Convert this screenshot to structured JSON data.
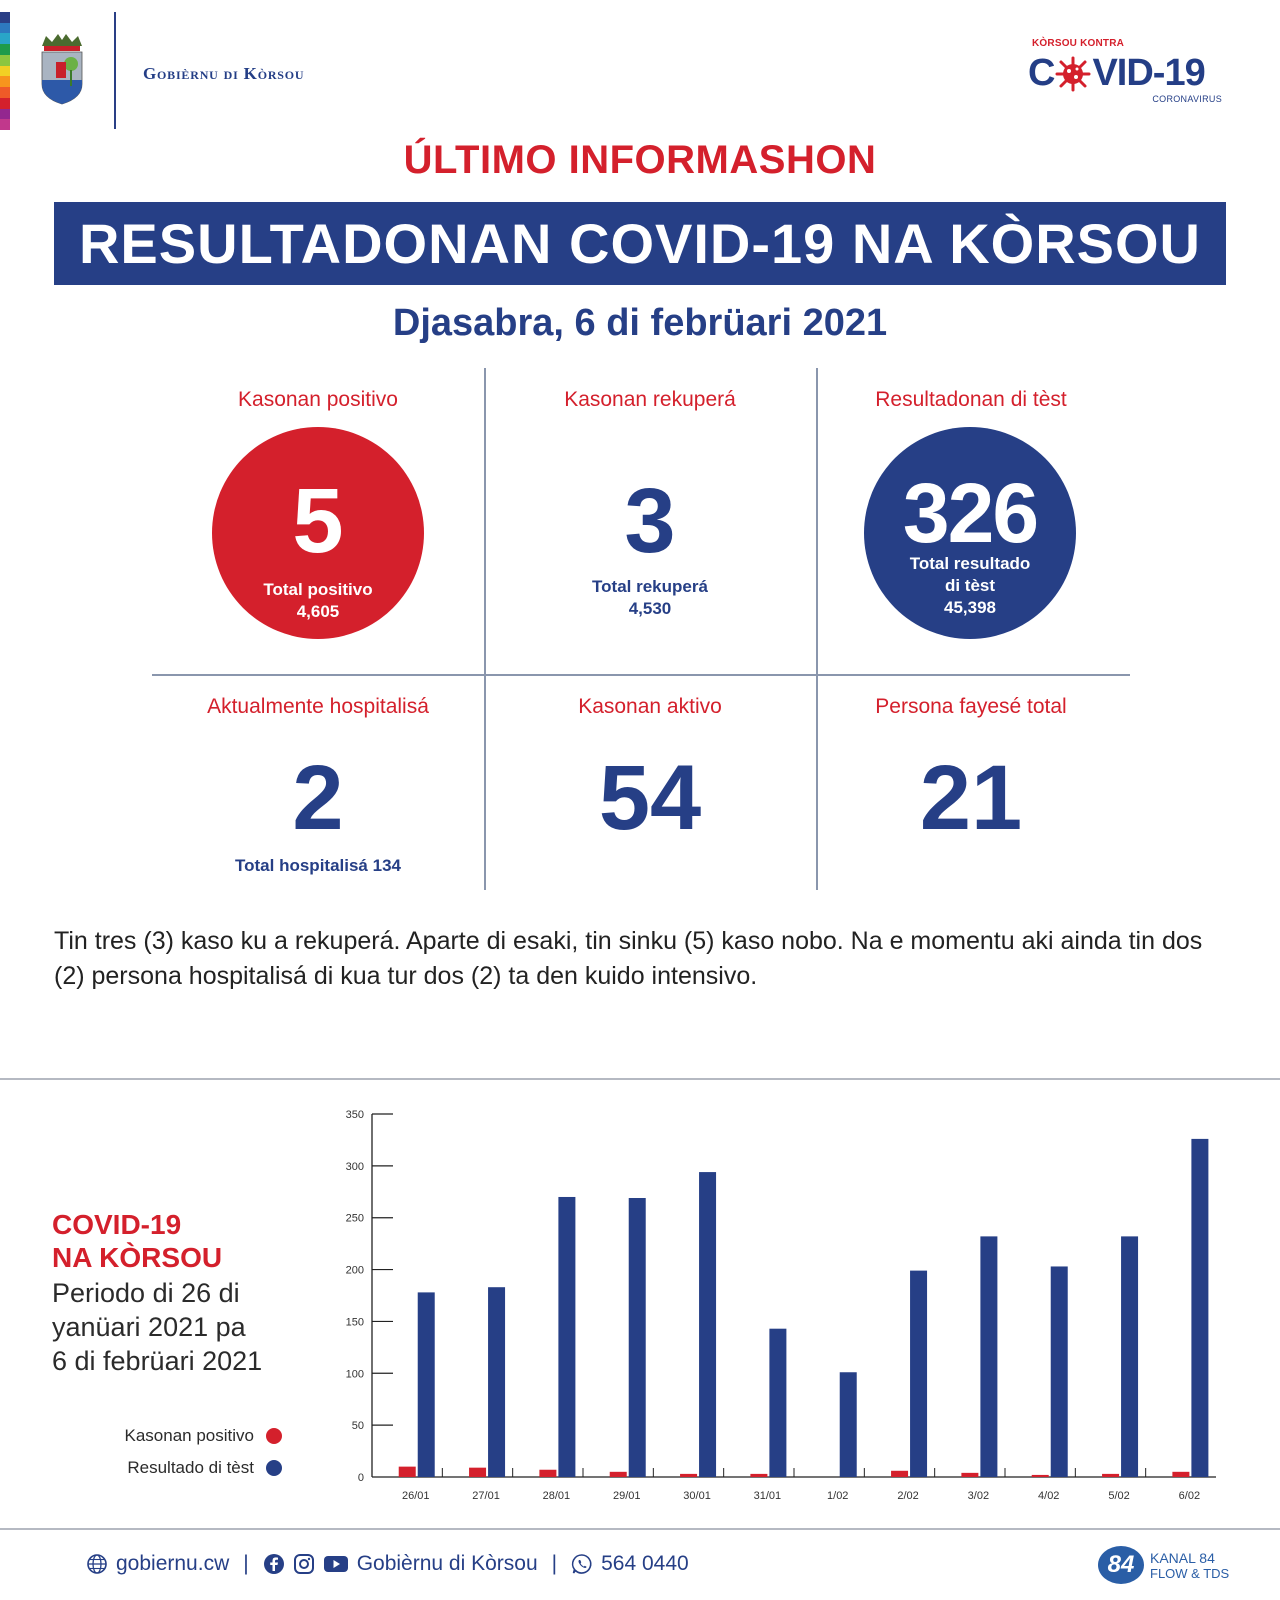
{
  "header": {
    "strip_colors": [
      "#2a3f86",
      "#2d79bf",
      "#29a5c8",
      "#1e9b4b",
      "#8dc63f",
      "#f2d024",
      "#f7941d",
      "#ef5a28",
      "#d4202c",
      "#93278f",
      "#c1388c"
    ],
    "gov_name": "Gobièrnu di Kòrsou",
    "logo_kontra": "KÒRSOU KONTRA",
    "logo_c": "C",
    "logo_vid": "VID-19",
    "logo_coronavirus": "CORONAVIRUS"
  },
  "title": {
    "kicker": "ÚLTIMO INFORMASHON",
    "banner": "RESULTADONAN COVID-19 NA KÒRSOU",
    "date": "Djasabra, 6 di febrüari 2021"
  },
  "stats": {
    "positive": {
      "label": "Kasonan positivo",
      "value": "5",
      "total_label": "Total positivo",
      "total_value": "4,605"
    },
    "recovered": {
      "label": "Kasonan rekuperá",
      "value": "3",
      "total_label": "Total rekuperá",
      "total_value": "4,530"
    },
    "tests": {
      "label": "Resultadonan di tèst",
      "value": "326",
      "total_label_1": "Total resultado",
      "total_label_2": "di tèst",
      "total_value": "45,398"
    },
    "hospitalized": {
      "label": "Aktualmente hospitalisá",
      "value": "2",
      "total": "Total hospitalisá 134"
    },
    "active": {
      "label": "Kasonan aktivo",
      "value": "54"
    },
    "deceased": {
      "label": "Persona fayesé total",
      "value": "21"
    }
  },
  "paragraph": "Tin tres (3) kaso ku a rekuperá. Aparte di esaki, tin sinku (5) kaso nobo. Na e momentu aki ainda tin dos (2) persona hospitalisá di kua tur dos (2) ta den kuido intensivo.",
  "chart_section": {
    "title_line1": "COVID-19",
    "title_line2": "NA KÒRSOU",
    "subtitle_line1": "Periodo di 26 di",
    "subtitle_line2": "yanüari 2021 pa",
    "subtitle_line3": "6 di febrüari 2021",
    "legend": [
      {
        "label": "Kasonan positivo",
        "color": "#d4202c"
      },
      {
        "label": "Resultado di tèst",
        "color": "#263f86"
      }
    ]
  },
  "chart_data": {
    "type": "bar",
    "title": "COVID-19 NA KÒRSOU — Periodo di 26 di yanüari 2021 pa 6 di febrüari 2021",
    "xlabel": "",
    "ylabel": "",
    "categories": [
      "26/01",
      "27/01",
      "28/01",
      "29/01",
      "30/01",
      "31/01",
      "1/02",
      "2/02",
      "3/02",
      "4/02",
      "5/02",
      "6/02"
    ],
    "series": [
      {
        "name": "Kasonan positivo",
        "color": "#d4202c",
        "values": [
          10,
          9,
          7,
          5,
          3,
          3,
          0,
          6,
          4,
          2,
          3,
          5
        ]
      },
      {
        "name": "Resultado di tèst",
        "color": "#263f86",
        "values": [
          178,
          183,
          270,
          269,
          294,
          143,
          101,
          199,
          232,
          203,
          232,
          326
        ]
      }
    ],
    "ylim": [
      0,
      350
    ],
    "yticks": [
      0,
      50,
      100,
      150,
      200,
      250,
      300,
      350
    ],
    "grid": false,
    "legend_position": "left"
  },
  "footer": {
    "website": "gobiernu.cw",
    "social_name": "Gobièrnu di Kòrsou",
    "phone": "564 0440",
    "kanal_badge": "84",
    "kanal_line1": "KANAL 84",
    "kanal_line2": "FLOW & TDS"
  }
}
